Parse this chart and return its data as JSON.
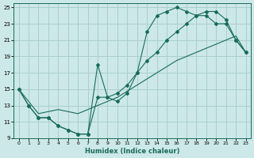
{
  "xlabel": "Humidex (Indice chaleur)",
  "bg_color": "#cce8e8",
  "grid_color": "#aacece",
  "line_color": "#1a6b5a",
  "xlim": [
    -0.5,
    23.5
  ],
  "ylim": [
    9,
    25.5
  ],
  "xticks": [
    0,
    1,
    2,
    3,
    4,
    5,
    6,
    7,
    8,
    9,
    10,
    11,
    12,
    13,
    14,
    15,
    16,
    17,
    18,
    19,
    20,
    21,
    22,
    23
  ],
  "yticks": [
    9,
    11,
    13,
    15,
    17,
    19,
    21,
    23,
    25
  ],
  "line1_x": [
    0,
    1,
    2,
    3,
    4,
    5,
    6,
    7,
    8,
    9,
    10,
    11,
    12,
    13,
    14,
    15,
    16,
    17,
    18,
    19,
    20,
    21,
    22,
    23
  ],
  "line1_y": [
    15.0,
    13.0,
    11.5,
    11.5,
    10.5,
    10.0,
    9.5,
    9.5,
    14.0,
    14.0,
    14.5,
    15.5,
    17.0,
    18.5,
    19.5,
    21.0,
    22.0,
    23.0,
    24.0,
    24.5,
    24.5,
    23.5,
    21.0,
    19.5
  ],
  "line2_x": [
    0,
    1,
    2,
    3,
    4,
    5,
    6,
    7,
    8,
    9,
    10,
    11,
    12,
    13,
    14,
    15,
    16,
    17,
    18,
    19,
    20,
    21,
    22,
    23
  ],
  "line2_y": [
    15.0,
    13.0,
    11.5,
    11.5,
    10.5,
    10.0,
    9.5,
    9.5,
    18.0,
    14.0,
    13.5,
    14.5,
    17.0,
    22.0,
    24.0,
    24.5,
    25.0,
    24.5,
    24.0,
    24.0,
    23.0,
    23.0,
    21.0,
    19.5
  ],
  "line3_x": [
    0,
    2,
    4,
    6,
    8,
    10,
    12,
    14,
    16,
    18,
    20,
    22,
    23
  ],
  "line3_y": [
    15.0,
    12.0,
    12.5,
    12.0,
    13.0,
    14.0,
    15.5,
    17.0,
    18.5,
    19.5,
    20.5,
    21.5,
    19.5
  ]
}
